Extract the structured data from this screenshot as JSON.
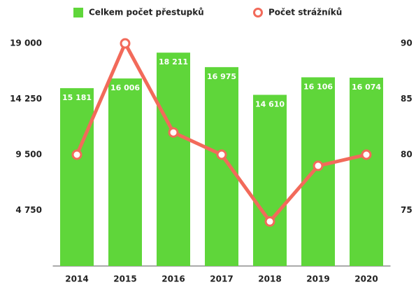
{
  "chart_data": {
    "type": "bar",
    "categories": [
      "2014",
      "2015",
      "2016",
      "2017",
      "2018",
      "2019",
      "2020"
    ],
    "series": [
      {
        "name": "Celkem počet přestupků",
        "type": "bar",
        "color": "#5fd63a",
        "values": [
          15181,
          16006,
          18211,
          16975,
          14610,
          16106,
          16074
        ],
        "value_labels": [
          "15 181",
          "16 006",
          "18 211",
          "16 975",
          "14 610",
          "16 106",
          "16 074"
        ]
      },
      {
        "name": "Počet strážníků",
        "type": "line",
        "axis": "y2",
        "color": "#f26a5a",
        "values": [
          80,
          90,
          82,
          80,
          74,
          79,
          80
        ]
      }
    ],
    "ylim": [
      0,
      19000
    ],
    "yticks": [
      {
        "value": 4750,
        "label": "4 750"
      },
      {
        "value": 9500,
        "label": "9 500"
      },
      {
        "value": 14250,
        "label": "14 250"
      },
      {
        "value": 19000,
        "label": "19 000"
      }
    ],
    "y2lim": [
      70,
      90
    ],
    "y2ticks": [
      75,
      80,
      85,
      90
    ]
  }
}
